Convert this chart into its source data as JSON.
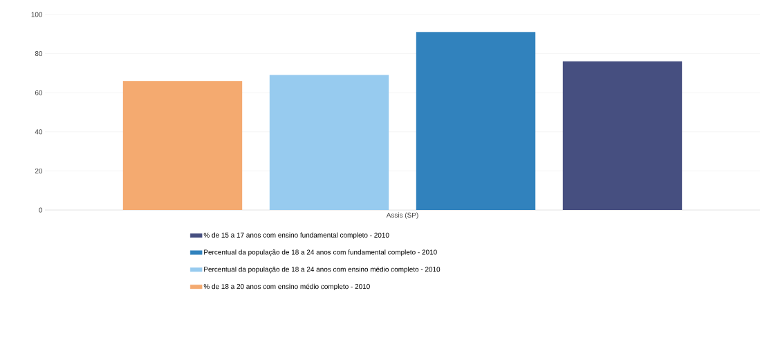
{
  "chart_data": {
    "type": "bar",
    "categories": [
      "Assis (SP)"
    ],
    "series": [
      {
        "name": "% de 18 a 20 anos com ensino médio completo - 2010",
        "color": "#f4aa70",
        "values": [
          66
        ]
      },
      {
        "name": "Percentual da população de 18 a 24 anos com ensino médio completo - 2010",
        "color": "#97cbef",
        "values": [
          69
        ]
      },
      {
        "name": "Percentual da população de 18 a 24 anos com fundamental completo - 2010",
        "color": "#3182bd",
        "values": [
          91
        ]
      },
      {
        "name": "% de 15 a 17 anos com ensino fundamental completo - 2010",
        "color": "#464f80",
        "values": [
          76
        ]
      }
    ],
    "ylim": [
      0,
      100
    ],
    "yticks": [
      0,
      20,
      40,
      60,
      80,
      100
    ],
    "grid": "y",
    "legend": "bottom"
  }
}
